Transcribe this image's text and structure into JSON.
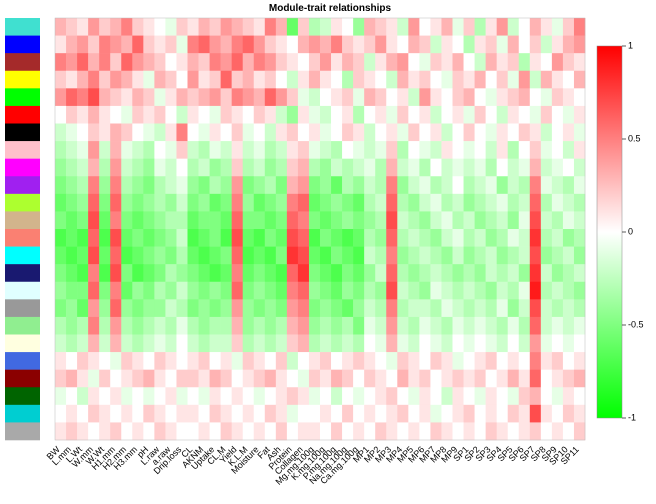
{
  "chart_data": {
    "type": "heatmap",
    "title": "Module-trait relationships",
    "x_categories": [
      "BW",
      "L.mm",
      "L.Wt",
      "W.mm",
      "W.Wt",
      "H1.mm",
      "H2.mm",
      "H3.mm",
      "pH",
      "L.raw",
      "a.raw",
      "Drip.loss",
      "CL",
      "AKNM",
      "Uptake",
      "CL.M",
      "Yield",
      "K.L.M",
      "Moisture",
      "Fat",
      "Ash",
      "Protein",
      "Collagen",
      "Mg.mg.100g",
      "K.mg.100g",
      "P.mg.100g",
      "Na.mg.100g",
      "Ca.mg.100g",
      "MP1",
      "MP2",
      "MP3",
      "MP4",
      "MP5",
      "MP6",
      "MP7",
      "MP8",
      "MP9",
      "SP1",
      "SP2",
      "SP3",
      "SP4",
      "SP5",
      "SP6",
      "SP7",
      "SP8",
      "SP9",
      "SP10",
      "SP11"
    ],
    "row_colors": [
      "#40e0d0",
      "#0000ff",
      "#a52a2a",
      "#ffff00",
      "#00ff00",
      "#ff0000",
      "#000000",
      "#ffc0cb",
      "#ff00ff",
      "#a020f0",
      "#adff2f",
      "#d2b48c",
      "#fa8072",
      "#00ffff",
      "#191970",
      "#e0ffff",
      "#999999",
      "#90ee90",
      "#ffffe0",
      "#4169e1",
      "#8b0000",
      "#006400",
      "#00ced1",
      "#a9a9a9"
    ],
    "values": [
      [
        0.3,
        0.2,
        0.1,
        0.4,
        0.2,
        0.3,
        0.5,
        0.2,
        0.1,
        0.0,
        -0.1,
        0.2,
        0.1,
        0.3,
        0.2,
        0.4,
        0.3,
        0.2,
        0.1,
        0.5,
        0.3,
        -0.6,
        0.2,
        -0.3,
        -0.2,
        0.1,
        0.0,
        -0.4,
        0.3,
        0.2,
        0.1,
        -0.2,
        0.4,
        0.0,
        0.1,
        0.3,
        -0.1,
        0.2,
        -0.3,
        0.1,
        0.4,
        -0.2,
        0.0,
        0.3,
        0.1,
        -0.1,
        0.2,
        0.5
      ],
      [
        0.1,
        0.3,
        0.4,
        0.2,
        0.5,
        0.4,
        0.3,
        0.6,
        0.2,
        0.1,
        0.2,
        -0.1,
        0.5,
        0.6,
        0.4,
        0.3,
        0.5,
        0.6,
        0.4,
        0.2,
        0.1,
        0.0,
        0.3,
        0.4,
        0.3,
        0.5,
        0.2,
        0.1,
        0.2,
        0.4,
        0.1,
        0.0,
        0.3,
        0.2,
        -0.2,
        0.1,
        0.0,
        -0.3,
        0.1,
        0.2,
        -0.1,
        0.3,
        0.0,
        0.2,
        -0.2,
        0.1,
        0.3,
        0.4
      ],
      [
        0.5,
        0.4,
        0.6,
        0.3,
        0.5,
        0.2,
        0.6,
        0.4,
        0.3,
        0.2,
        0.0,
        0.1,
        0.3,
        0.2,
        0.5,
        0.4,
        0.6,
        0.3,
        0.5,
        0.4,
        0.2,
        0.1,
        0.0,
        0.2,
        0.4,
        0.1,
        0.3,
        0.2,
        -0.2,
        0.1,
        0.3,
        0.4,
        0.0,
        -0.1,
        0.2,
        0.1,
        0.3,
        0.0,
        -0.2,
        0.3,
        0.1,
        0.2,
        -0.3,
        0.1,
        0.0,
        0.4,
        0.2,
        0.1
      ],
      [
        0.2,
        0.1,
        0.3,
        0.5,
        0.2,
        0.4,
        0.3,
        0.1,
        -0.1,
        0.3,
        0.2,
        0.0,
        0.4,
        0.1,
        0.2,
        0.6,
        0.2,
        0.3,
        0.1,
        0.2,
        0.0,
        -0.2,
        0.1,
        0.3,
        0.1,
        0.0,
        -0.3,
        0.2,
        0.1,
        0.0,
        -0.2,
        0.3,
        0.1,
        0.2,
        0.0,
        -0.1,
        0.2,
        0.1,
        0.3,
        0.0,
        0.2,
        -0.1,
        0.4,
        -0.2,
        0.3,
        0.1,
        0.0,
        0.3
      ],
      [
        0.4,
        0.6,
        0.5,
        0.7,
        0.3,
        0.2,
        0.1,
        0.3,
        0.2,
        -0.1,
        0.1,
        0.3,
        0.2,
        0.3,
        0.4,
        0.2,
        0.5,
        0.4,
        0.3,
        0.6,
        0.4,
        0.2,
        -0.1,
        -0.2,
        0.0,
        0.1,
        0.2,
        -0.1,
        0.3,
        0.2,
        0.0,
        0.1,
        -0.2,
        0.4,
        0.1,
        0.0,
        0.2,
        0.3,
        0.0,
        -0.1,
        0.1,
        0.2,
        0.3,
        0.0,
        -0.1,
        0.2,
        0.1,
        0.0
      ],
      [
        0.0,
        0.2,
        0.1,
        0.3,
        0.1,
        0.0,
        -0.1,
        0.2,
        0.1,
        0.2,
        0.0,
        -0.2,
        0.1,
        0.0,
        -0.1,
        0.2,
        0.1,
        0.0,
        0.2,
        0.1,
        -0.2,
        -0.4,
        0.1,
        -0.1,
        -0.2,
        0.0,
        0.1,
        -0.3,
        0.0,
        0.1,
        -0.1,
        0.2,
        0.0,
        0.1,
        -0.2,
        0.0,
        0.1,
        -0.1,
        0.2,
        0.0,
        -0.2,
        0.1,
        0.0,
        -0.1,
        0.2,
        0.0,
        -0.1,
        0.1
      ],
      [
        -0.2,
        -0.1,
        0.0,
        0.2,
        0.1,
        0.3,
        0.2,
        0.0,
        -0.1,
        -0.2,
        0.1,
        0.5,
        0.0,
        -0.1,
        0.1,
        0.0,
        0.2,
        -0.1,
        0.0,
        -0.2,
        0.1,
        0.2,
        0.0,
        0.1,
        -0.1,
        0.0,
        0.2,
        0.1,
        -0.2,
        0.0,
        0.1,
        -0.1,
        0.2,
        0.0,
        0.1,
        -0.2,
        0.0,
        0.2,
        0.0,
        -0.1,
        0.1,
        0.0,
        0.2,
        0.1,
        -0.2,
        0.0,
        0.1,
        -0.1
      ],
      [
        -0.3,
        -0.2,
        -0.1,
        0.4,
        -0.2,
        0.3,
        -0.1,
        -0.2,
        -0.3,
        0.0,
        -0.1,
        0.2,
        -0.2,
        -0.3,
        -0.1,
        -0.2,
        0.1,
        -0.2,
        -0.1,
        -0.3,
        -0.2,
        0.1,
        0.2,
        -0.1,
        -0.2,
        -0.3,
        0.0,
        -0.1,
        -0.2,
        -0.1,
        0.2,
        -0.3,
        0.0,
        -0.1,
        -0.2,
        0.1,
        0.0,
        -0.1,
        0.0,
        -0.2,
        0.1,
        -0.3,
        0.0,
        0.2,
        -0.1,
        0.0,
        -0.2,
        0.1
      ],
      [
        -0.4,
        -0.3,
        -0.2,
        0.3,
        -0.3,
        0.4,
        -0.2,
        -0.3,
        -0.4,
        -0.1,
        -0.2,
        0.0,
        -0.3,
        -0.2,
        -0.4,
        -0.3,
        0.2,
        -0.3,
        -0.2,
        -0.4,
        -0.3,
        0.2,
        0.3,
        -0.3,
        -0.4,
        -0.2,
        -0.3,
        -0.2,
        -0.1,
        -0.3,
        0.3,
        -0.2,
        -0.1,
        -0.3,
        0.0,
        -0.2,
        -0.1,
        -0.2,
        -0.1,
        -0.3,
        0.0,
        -0.2,
        -0.1,
        0.3,
        -0.2,
        -0.1,
        0.0,
        -0.2
      ],
      [
        -0.5,
        -0.4,
        -0.3,
        0.5,
        -0.4,
        0.5,
        -0.3,
        -0.4,
        -0.5,
        -0.3,
        -0.2,
        -0.1,
        -0.4,
        -0.5,
        -0.3,
        -0.4,
        0.4,
        -0.5,
        -0.4,
        -0.3,
        -0.5,
        0.3,
        0.4,
        -0.5,
        -0.4,
        -0.6,
        -0.3,
        -0.4,
        -0.2,
        -0.3,
        0.5,
        -0.4,
        -0.2,
        -0.1,
        -0.3,
        -0.2,
        0.0,
        -0.3,
        -0.2,
        -0.1,
        -0.4,
        -0.2,
        -0.3,
        0.5,
        -0.1,
        -0.2,
        -0.3,
        -0.1
      ],
      [
        -0.6,
        -0.5,
        -0.4,
        0.6,
        -0.5,
        0.6,
        -0.4,
        -0.5,
        -0.4,
        -0.3,
        -0.4,
        -0.2,
        -0.5,
        -0.4,
        -0.6,
        -0.5,
        0.5,
        -0.4,
        -0.6,
        -0.5,
        -0.4,
        0.5,
        0.6,
        -0.6,
        -0.5,
        -0.4,
        -0.5,
        -0.6,
        -0.3,
        -0.2,
        0.6,
        -0.3,
        -0.4,
        -0.2,
        -0.1,
        -0.3,
        -0.2,
        -0.4,
        -0.3,
        -0.2,
        -0.1,
        -0.3,
        -0.2,
        0.6,
        -0.3,
        -0.1,
        -0.2,
        -0.3
      ],
      [
        -0.5,
        -0.6,
        -0.5,
        0.7,
        -0.6,
        0.5,
        -0.5,
        -0.6,
        -0.5,
        -0.4,
        -0.3,
        -0.3,
        -0.6,
        -0.5,
        -0.5,
        -0.6,
        0.6,
        -0.5,
        -0.5,
        -0.6,
        -0.5,
        0.6,
        0.5,
        -0.5,
        -0.6,
        -0.5,
        -0.4,
        -0.5,
        -0.4,
        -0.3,
        0.7,
        -0.2,
        -0.3,
        -0.4,
        -0.2,
        -0.1,
        -0.3,
        -0.2,
        -0.4,
        -0.3,
        -0.2,
        -0.4,
        -0.1,
        0.7,
        -0.2,
        -0.3,
        -0.1,
        -0.2
      ],
      [
        -0.7,
        -0.6,
        -0.7,
        0.6,
        -0.7,
        0.7,
        -0.6,
        -0.5,
        -0.6,
        -0.5,
        -0.4,
        -0.2,
        -0.7,
        -0.6,
        -0.5,
        -0.7,
        0.7,
        -0.6,
        -0.7,
        -0.5,
        -0.6,
        0.7,
        0.6,
        -0.7,
        -0.5,
        -0.6,
        -0.7,
        -0.6,
        -0.3,
        -0.4,
        0.6,
        -0.3,
        -0.2,
        -0.3,
        -0.4,
        -0.2,
        -0.1,
        -0.3,
        -0.2,
        -0.4,
        -0.3,
        -0.1,
        -0.2,
        0.8,
        -0.3,
        -0.2,
        -0.4,
        -0.3
      ],
      [
        -0.6,
        -0.7,
        -0.6,
        0.7,
        -0.6,
        0.6,
        -0.7,
        -0.6,
        -0.5,
        -0.4,
        -0.5,
        -0.3,
        -0.6,
        -0.7,
        -0.6,
        -0.5,
        0.6,
        -0.7,
        -0.6,
        -0.7,
        -0.5,
        0.8,
        0.7,
        -0.6,
        -0.7,
        -0.5,
        -0.6,
        -0.7,
        -0.2,
        -0.3,
        0.5,
        -0.4,
        -0.3,
        -0.2,
        -0.3,
        -0.4,
        -0.2,
        -0.4,
        -0.3,
        -0.2,
        -0.4,
        -0.3,
        -0.2,
        0.7,
        -0.4,
        -0.3,
        -0.2,
        -0.4
      ],
      [
        -0.5,
        -0.6,
        -0.7,
        0.5,
        -0.7,
        0.7,
        -0.5,
        -0.7,
        -0.6,
        -0.5,
        -0.3,
        -0.4,
        -0.5,
        -0.6,
        -0.7,
        -0.6,
        0.5,
        -0.6,
        -0.5,
        -0.6,
        -0.7,
        0.6,
        0.8,
        -0.5,
        -0.6,
        -0.7,
        -0.5,
        -0.6,
        -0.4,
        -0.2,
        0.6,
        -0.3,
        -0.4,
        -0.3,
        -0.2,
        -0.3,
        -0.4,
        -0.3,
        -0.4,
        -0.2,
        -0.3,
        -0.2,
        -0.4,
        0.8,
        -0.2,
        -0.4,
        -0.3,
        -0.2
      ],
      [
        -0.4,
        -0.5,
        -0.5,
        0.6,
        -0.5,
        0.5,
        -0.6,
        -0.4,
        -0.5,
        -0.3,
        -0.4,
        -0.2,
        -0.4,
        -0.5,
        -0.4,
        -0.5,
        0.6,
        -0.5,
        -0.4,
        -0.5,
        -0.6,
        0.5,
        0.6,
        -0.4,
        -0.5,
        -0.6,
        -0.4,
        -0.5,
        -0.3,
        -0.4,
        0.7,
        -0.2,
        -0.3,
        -0.4,
        -0.1,
        -0.2,
        -0.3,
        -0.2,
        -0.3,
        -0.4,
        -0.2,
        -0.3,
        -0.1,
        0.9,
        -0.3,
        -0.2,
        -0.3,
        -0.4
      ],
      [
        -0.5,
        -0.4,
        -0.6,
        0.4,
        -0.4,
        0.6,
        -0.4,
        -0.5,
        -0.4,
        -0.4,
        -0.2,
        -0.3,
        -0.5,
        -0.4,
        -0.5,
        -0.4,
        0.4,
        -0.4,
        -0.5,
        -0.4,
        -0.5,
        0.4,
        0.5,
        -0.5,
        -0.4,
        -0.5,
        -0.6,
        -0.4,
        -0.2,
        -0.3,
        0.5,
        -0.3,
        -0.2,
        -0.2,
        -0.3,
        -0.1,
        -0.2,
        -0.3,
        -0.2,
        -0.3,
        -0.1,
        -0.4,
        -0.2,
        0.7,
        -0.2,
        -0.3,
        -0.2,
        -0.3
      ],
      [
        -0.3,
        -0.4,
        -0.3,
        0.5,
        -0.3,
        0.4,
        -0.3,
        -0.4,
        -0.3,
        -0.2,
        -0.3,
        -0.1,
        -0.3,
        -0.4,
        -0.3,
        -0.3,
        0.3,
        -0.4,
        -0.3,
        -0.4,
        -0.3,
        0.3,
        0.4,
        -0.4,
        -0.3,
        -0.4,
        -0.3,
        -0.5,
        -0.1,
        -0.2,
        0.4,
        -0.2,
        -0.3,
        -0.1,
        -0.2,
        -0.3,
        -0.1,
        -0.2,
        -0.1,
        -0.2,
        -0.3,
        -0.1,
        -0.3,
        0.6,
        -0.2,
        -0.1,
        -0.2,
        -0.1
      ],
      [
        -0.2,
        -0.3,
        -0.2,
        0.3,
        -0.2,
        0.3,
        -0.2,
        -0.3,
        -0.2,
        -0.1,
        -0.2,
        0.0,
        -0.2,
        -0.3,
        -0.2,
        -0.2,
        0.2,
        -0.3,
        -0.2,
        -0.3,
        -0.2,
        0.2,
        0.3,
        -0.3,
        -0.2,
        -0.3,
        -0.2,
        -0.3,
        0.0,
        -0.1,
        0.3,
        -0.1,
        -0.2,
        0.0,
        -0.1,
        -0.2,
        0.0,
        -0.1,
        0.0,
        -0.1,
        -0.2,
        0.0,
        -0.2,
        0.4,
        -0.1,
        0.0,
        -0.1,
        0.0
      ],
      [
        0.1,
        0.0,
        0.2,
        0.1,
        0.0,
        -0.1,
        0.2,
        0.1,
        0.0,
        0.2,
        0.1,
        0.0,
        0.1,
        0.2,
        0.0,
        0.1,
        -0.1,
        0.2,
        0.1,
        0.0,
        0.2,
        -0.2,
        0.0,
        0.1,
        0.2,
        0.0,
        0.1,
        0.2,
        0.1,
        0.0,
        -0.1,
        0.2,
        0.1,
        0.0,
        0.2,
        0.1,
        -0.1,
        0.0,
        0.1,
        0.2,
        0.0,
        0.1,
        0.0,
        0.5,
        0.1,
        0.2,
        0.0,
        0.1
      ],
      [
        0.2,
        0.3,
        0.1,
        -0.1,
        0.2,
        0.0,
        0.1,
        0.2,
        0.3,
        0.1,
        0.0,
        0.2,
        0.2,
        0.1,
        0.3,
        0.2,
        0.0,
        0.1,
        0.2,
        0.3,
        0.1,
        0.0,
        -0.1,
        0.2,
        0.1,
        0.3,
        0.2,
        0.0,
        0.2,
        0.1,
        0.0,
        0.3,
        0.1,
        0.2,
        0.0,
        0.1,
        0.2,
        0.1,
        0.2,
        0.0,
        0.1,
        0.3,
        0.1,
        0.6,
        0.0,
        0.1,
        0.2,
        0.3
      ],
      [
        -0.1,
        0.0,
        -0.2,
        0.1,
        0.0,
        0.1,
        -0.1,
        0.0,
        -0.1,
        0.0,
        0.1,
        -0.1,
        0.0,
        -0.1,
        0.1,
        0.0,
        0.1,
        0.0,
        -0.1,
        0.0,
        0.1,
        0.2,
        0.1,
        -0.1,
        0.0,
        -0.2,
        0.0,
        -0.1,
        0.0,
        0.1,
        0.2,
        0.0,
        -0.1,
        0.1,
        0.0,
        -0.2,
        0.1,
        0.0,
        -0.1,
        0.1,
        0.0,
        -0.1,
        0.2,
        0.3,
        0.0,
        -0.1,
        0.1,
        0.0
      ],
      [
        0.0,
        0.1,
        0.0,
        0.2,
        0.1,
        0.0,
        0.1,
        0.0,
        0.2,
        0.1,
        0.0,
        0.1,
        0.1,
        0.0,
        0.2,
        0.1,
        0.0,
        0.1,
        0.0,
        0.2,
        0.1,
        -0.1,
        0.0,
        0.0,
        0.1,
        0.0,
        0.2,
        0.0,
        0.1,
        0.0,
        0.1,
        0.2,
        0.0,
        0.1,
        -0.1,
        0.0,
        0.1,
        0.2,
        0.0,
        0.1,
        0.0,
        0.2,
        0.1,
        0.7,
        0.1,
        0.0,
        0.2,
        0.1
      ],
      [
        0.1,
        0.2,
        0.1,
        0.0,
        0.1,
        0.2,
        0.0,
        0.1,
        0.0,
        0.2,
        0.1,
        0.0,
        0.0,
        0.1,
        0.0,
        0.2,
        0.1,
        0.0,
        0.1,
        0.0,
        0.2,
        0.0,
        0.1,
        0.1,
        0.0,
        0.2,
        0.0,
        0.1,
        0.0,
        0.2,
        0.1,
        0.0,
        0.1,
        0.0,
        0.2,
        0.1,
        0.0,
        0.1,
        0.0,
        0.2,
        0.1,
        0.0,
        0.1,
        0.2,
        0.0,
        0.1,
        0.0,
        0.2
      ]
    ],
    "zlim": [
      -1,
      1
    ],
    "zticks": [
      -1,
      -0.5,
      0,
      0.5,
      1
    ],
    "colormap": [
      "#00ff00",
      "#ffffff",
      "#ff0000"
    ]
  }
}
